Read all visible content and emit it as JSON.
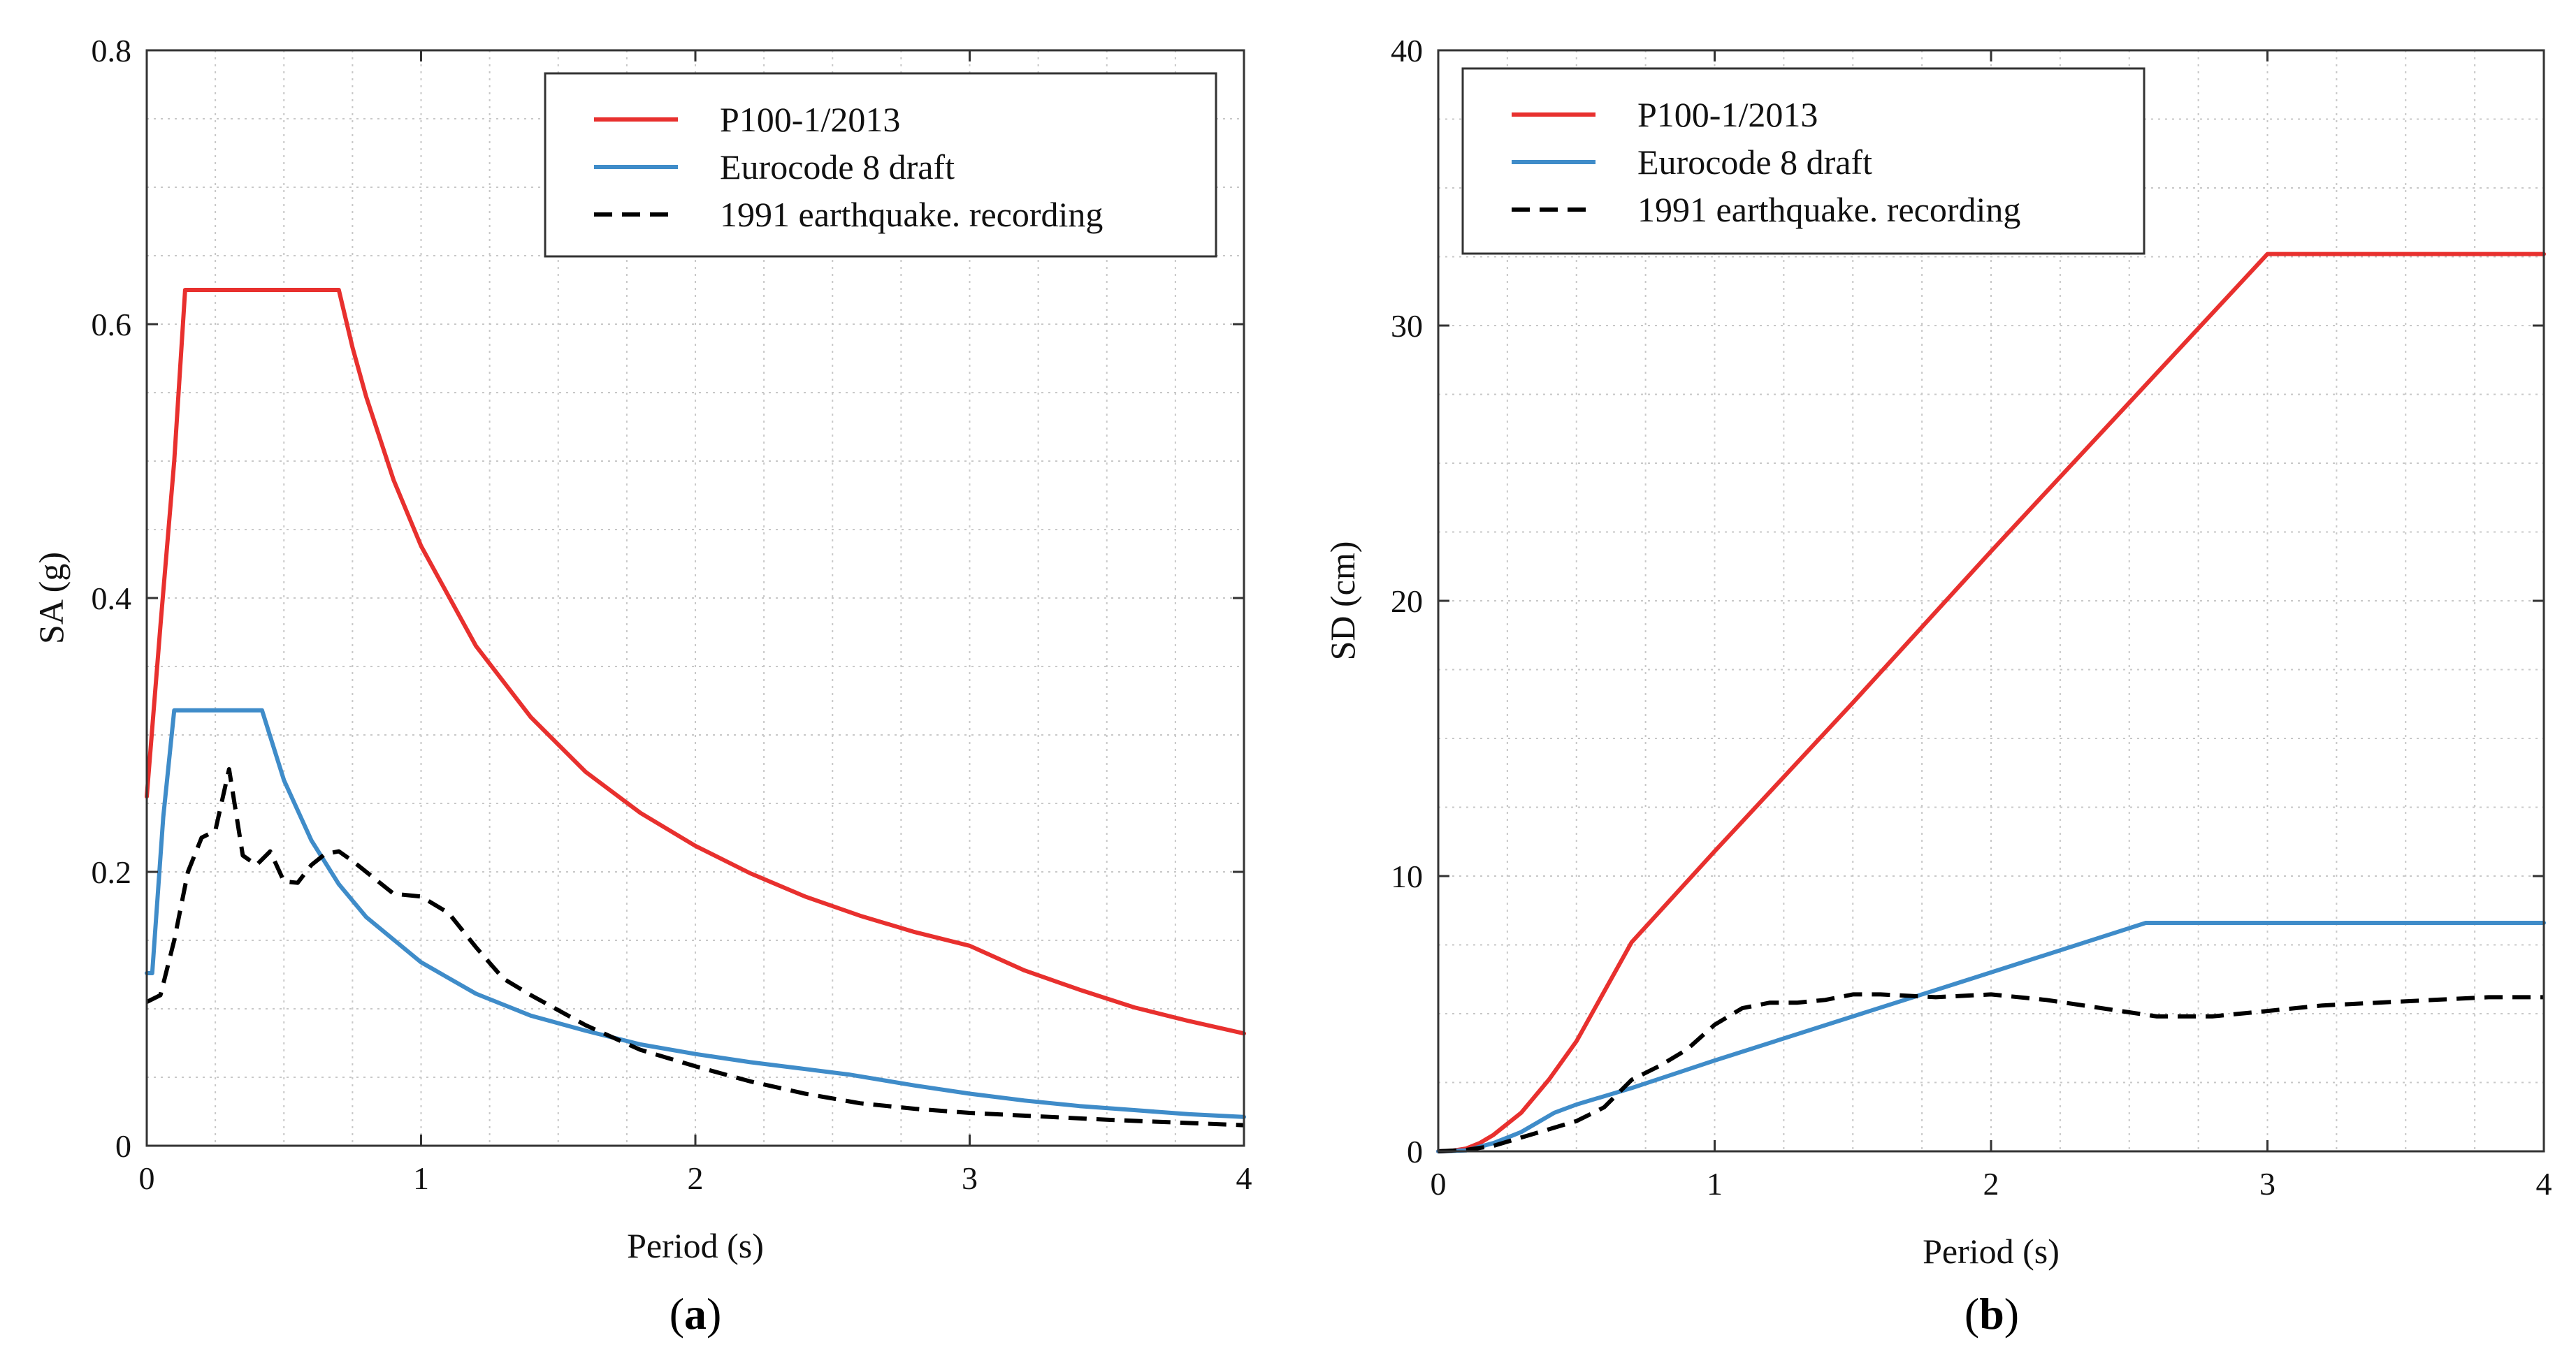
{
  "chart_data": [
    {
      "type": "line",
      "panel_label": "a",
      "xlabel": "Period (s)",
      "ylabel": "SA (g)",
      "xlim": [
        0,
        4
      ],
      "ylim": [
        0,
        0.8
      ],
      "xticks": [
        0,
        1,
        2,
        3,
        4
      ],
      "yticks": [
        0,
        0.2,
        0.4,
        0.6,
        0.8
      ],
      "grid": true,
      "legend_position": "top-right",
      "series": [
        {
          "name": "P100-1/2013",
          "color": "#e8302e",
          "dash": "solid",
          "x": [
            0,
            0.05,
            0.1,
            0.14,
            0.3,
            0.5,
            0.7,
            0.75,
            0.8,
            0.9,
            1.0,
            1.2,
            1.4,
            1.6,
            1.8,
            2.0,
            2.2,
            2.4,
            2.6,
            2.8,
            3.0,
            3.2,
            3.4,
            3.6,
            3.8,
            4.0
          ],
          "y": [
            0.255,
            0.38,
            0.5,
            0.625,
            0.625,
            0.625,
            0.625,
            0.583,
            0.547,
            0.486,
            0.438,
            0.365,
            0.313,
            0.273,
            0.243,
            0.219,
            0.199,
            0.182,
            0.168,
            0.156,
            0.146,
            0.128,
            0.114,
            0.101,
            0.091,
            0.082
          ]
        },
        {
          "name": "Eurocode 8 draft",
          "color": "#3f8cc9",
          "dash": "solid",
          "x": [
            0,
            0.02,
            0.06,
            0.1,
            0.2,
            0.3,
            0.42,
            0.5,
            0.6,
            0.7,
            0.8,
            1.0,
            1.2,
            1.4,
            1.6,
            1.8,
            2.0,
            2.2,
            2.4,
            2.56,
            2.8,
            3.0,
            3.2,
            3.4,
            3.6,
            3.8,
            4.0
          ],
          "y": [
            0.126,
            0.126,
            0.24,
            0.318,
            0.318,
            0.318,
            0.318,
            0.267,
            0.223,
            0.191,
            0.167,
            0.134,
            0.111,
            0.095,
            0.084,
            0.074,
            0.067,
            0.061,
            0.056,
            0.052,
            0.044,
            0.038,
            0.033,
            0.029,
            0.026,
            0.023,
            0.021
          ]
        },
        {
          "name": "1991 earthquake. recording",
          "color": "#000000",
          "dash": "dashed",
          "x": [
            0,
            0.05,
            0.1,
            0.15,
            0.2,
            0.25,
            0.3,
            0.35,
            0.4,
            0.45,
            0.5,
            0.55,
            0.6,
            0.65,
            0.7,
            0.75,
            0.8,
            0.9,
            1.0,
            1.1,
            1.2,
            1.3,
            1.4,
            1.6,
            1.8,
            2.0,
            2.2,
            2.4,
            2.6,
            2.8,
            3.0,
            3.5,
            4.0
          ],
          "y": [
            0.105,
            0.11,
            0.15,
            0.2,
            0.225,
            0.23,
            0.275,
            0.212,
            0.205,
            0.215,
            0.193,
            0.192,
            0.205,
            0.213,
            0.215,
            0.208,
            0.2,
            0.184,
            0.182,
            0.17,
            0.145,
            0.122,
            0.11,
            0.088,
            0.07,
            0.058,
            0.047,
            0.038,
            0.031,
            0.027,
            0.024,
            0.019,
            0.015
          ]
        }
      ]
    },
    {
      "type": "line",
      "panel_label": "b",
      "xlabel": "Period (s)",
      "ylabel": "SD (cm)",
      "xlim": [
        0,
        4
      ],
      "ylim": [
        0,
        40
      ],
      "xticks": [
        0,
        1,
        2,
        3,
        4
      ],
      "yticks": [
        0,
        10,
        20,
        30,
        40
      ],
      "grid": true,
      "legend_position": "top-left",
      "series": [
        {
          "name": "P100-1/2013",
          "color": "#e8302e",
          "dash": "solid",
          "x": [
            0,
            0.05,
            0.1,
            0.15,
            0.2,
            0.3,
            0.4,
            0.5,
            0.6,
            0.7,
            1.0,
            1.5,
            2.0,
            2.5,
            3.0,
            3.5,
            4.0
          ],
          "y": [
            0,
            0.02,
            0.1,
            0.3,
            0.6,
            1.4,
            2.6,
            4.0,
            5.8,
            7.6,
            10.9,
            16.3,
            21.8,
            27.2,
            32.6,
            32.6,
            32.6
          ]
        },
        {
          "name": "Eurocode 8 draft",
          "color": "#3f8cc9",
          "dash": "solid",
          "x": [
            0,
            0.1,
            0.2,
            0.3,
            0.42,
            0.5,
            0.7,
            1.0,
            1.5,
            2.0,
            2.56,
            3.0,
            3.5,
            4.0
          ],
          "y": [
            0,
            0.03,
            0.3,
            0.7,
            1.4,
            1.7,
            2.3,
            3.3,
            4.9,
            6.5,
            8.3,
            8.3,
            8.3,
            8.3
          ]
        },
        {
          "name": "1991 earthquake. recording",
          "color": "#000000",
          "dash": "dashed",
          "x": [
            0,
            0.1,
            0.2,
            0.3,
            0.4,
            0.5,
            0.6,
            0.7,
            0.8,
            0.9,
            1.0,
            1.1,
            1.2,
            1.3,
            1.4,
            1.5,
            1.6,
            1.8,
            2.0,
            2.2,
            2.4,
            2.6,
            2.8,
            3.0,
            3.2,
            3.4,
            3.6,
            3.8,
            4.0
          ],
          "y": [
            0,
            0.05,
            0.2,
            0.5,
            0.8,
            1.1,
            1.6,
            2.6,
            3.1,
            3.7,
            4.6,
            5.2,
            5.4,
            5.4,
            5.5,
            5.7,
            5.7,
            5.6,
            5.7,
            5.5,
            5.2,
            4.9,
            4.9,
            5.1,
            5.3,
            5.4,
            5.5,
            5.6,
            5.6
          ]
        }
      ]
    }
  ]
}
